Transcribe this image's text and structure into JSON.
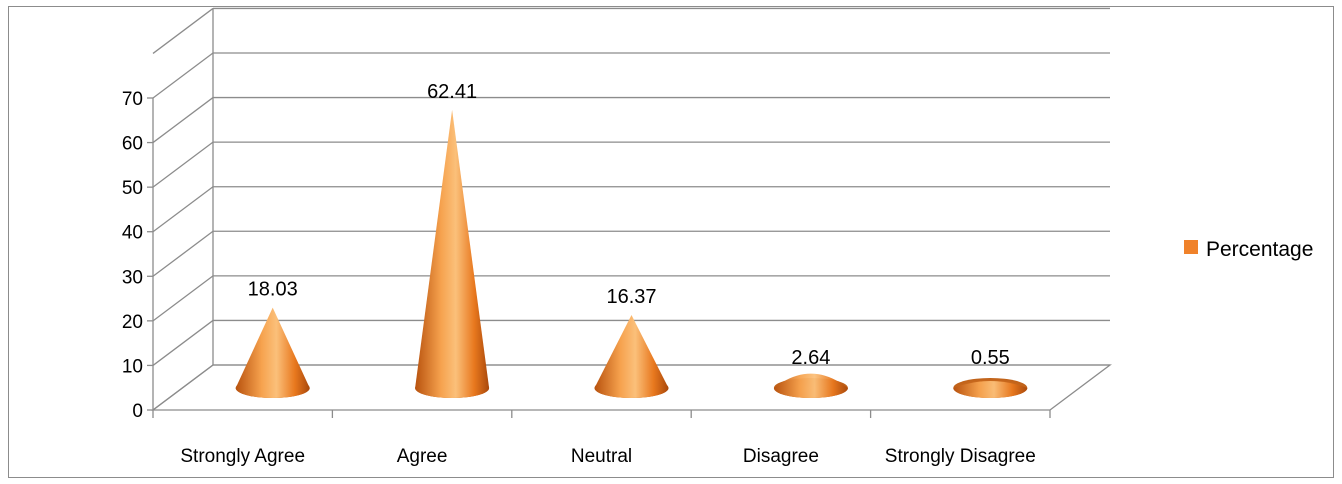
{
  "chart_data": {
    "type": "bar",
    "style": "3d-cone",
    "categories": [
      "Strongly Agree",
      "Agree",
      "Neutral",
      "Disagree",
      "Strongly Disagree"
    ],
    "series": [
      {
        "name": "Percentage",
        "values": [
          18.03,
          62.41,
          16.37,
          2.64,
          0.55
        ],
        "color": "#f0822a"
      }
    ],
    "data_labels": [
      "18.03",
      "62.41",
      "16.37",
      "2.64",
      "0.55"
    ],
    "y_ticks": [
      "0",
      "10",
      "20",
      "30",
      "40",
      "50",
      "60",
      "70"
    ],
    "ylim": [
      0,
      70
    ],
    "grid": true,
    "legend_position": "right",
    "title": "",
    "xlabel": "",
    "ylabel": ""
  }
}
